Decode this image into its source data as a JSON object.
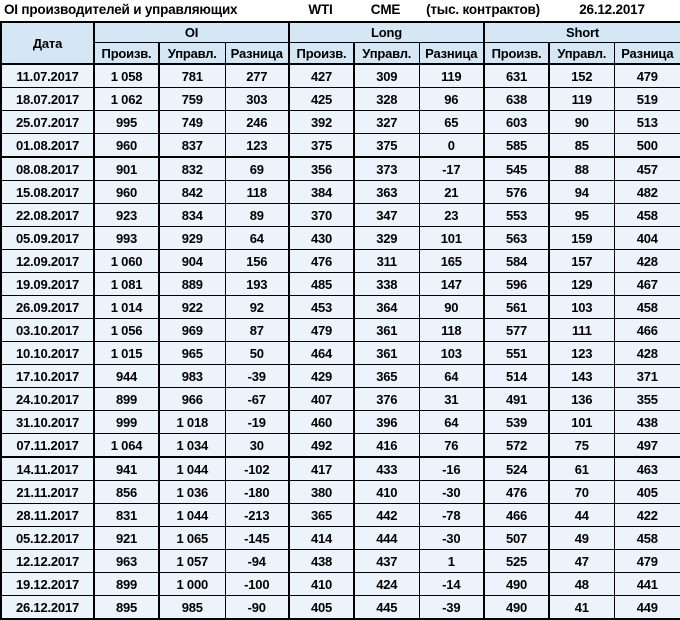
{
  "chart_data": {
    "type": "table",
    "title": "OI производителей и управляющих",
    "instrument": "WTI",
    "exchange": "CME",
    "units": "(тыс. контрактов)",
    "report_date": "26.12.2017",
    "date_header": "Дата",
    "group_headers": [
      "OI",
      "Long",
      "Short"
    ],
    "sub_headers": [
      "Произв.",
      "Управл.",
      "Разница"
    ],
    "thick_separator_after_dates": [
      "01.08.2017",
      "07.11.2017"
    ],
    "colors": {
      "header_bg": "#d5e6f4",
      "cell_bg": "#edf3fa",
      "positive": "#107c10",
      "negative": "#c43030",
      "border": "#000000"
    },
    "rows": [
      {
        "date": "11.07.2017",
        "oi": [
          "1 058",
          "781",
          "277"
        ],
        "long": [
          "427",
          "309",
          "119"
        ],
        "short": [
          "631",
          "152",
          "479"
        ]
      },
      {
        "date": "18.07.2017",
        "oi": [
          "1 062",
          "759",
          "303"
        ],
        "long": [
          "425",
          "328",
          "96"
        ],
        "short": [
          "638",
          "119",
          "519"
        ]
      },
      {
        "date": "25.07.2017",
        "oi": [
          "995",
          "749",
          "246"
        ],
        "long": [
          "392",
          "327",
          "65"
        ],
        "short": [
          "603",
          "90",
          "513"
        ]
      },
      {
        "date": "01.08.2017",
        "oi": [
          "960",
          "837",
          "123"
        ],
        "long": [
          "375",
          "375",
          "0"
        ],
        "short": [
          "585",
          "85",
          "500"
        ]
      },
      {
        "date": "08.08.2017",
        "oi": [
          "901",
          "832",
          "69"
        ],
        "long": [
          "356",
          "373",
          "-17"
        ],
        "short": [
          "545",
          "88",
          "457"
        ]
      },
      {
        "date": "15.08.2017",
        "oi": [
          "960",
          "842",
          "118"
        ],
        "long": [
          "384",
          "363",
          "21"
        ],
        "short": [
          "576",
          "94",
          "482"
        ]
      },
      {
        "date": "22.08.2017",
        "oi": [
          "923",
          "834",
          "89"
        ],
        "long": [
          "370",
          "347",
          "23"
        ],
        "short": [
          "553",
          "95",
          "458"
        ]
      },
      {
        "date": "05.09.2017",
        "oi": [
          "993",
          "929",
          "64"
        ],
        "long": [
          "430",
          "329",
          "101"
        ],
        "short": [
          "563",
          "159",
          "404"
        ]
      },
      {
        "date": "12.09.2017",
        "oi": [
          "1 060",
          "904",
          "156"
        ],
        "long": [
          "476",
          "311",
          "165"
        ],
        "short": [
          "584",
          "157",
          "428"
        ]
      },
      {
        "date": "19.09.2017",
        "oi": [
          "1 081",
          "889",
          "193"
        ],
        "long": [
          "485",
          "338",
          "147"
        ],
        "short": [
          "596",
          "129",
          "467"
        ]
      },
      {
        "date": "26.09.2017",
        "oi": [
          "1 014",
          "922",
          "92"
        ],
        "long": [
          "453",
          "364",
          "90"
        ],
        "short": [
          "561",
          "103",
          "458"
        ]
      },
      {
        "date": "03.10.2017",
        "oi": [
          "1 056",
          "969",
          "87"
        ],
        "long": [
          "479",
          "361",
          "118"
        ],
        "short": [
          "577",
          "111",
          "466"
        ]
      },
      {
        "date": "10.10.2017",
        "oi": [
          "1 015",
          "965",
          "50"
        ],
        "long": [
          "464",
          "361",
          "103"
        ],
        "short": [
          "551",
          "123",
          "428"
        ]
      },
      {
        "date": "17.10.2017",
        "oi": [
          "944",
          "983",
          "-39"
        ],
        "long": [
          "429",
          "365",
          "64"
        ],
        "short": [
          "514",
          "143",
          "371"
        ]
      },
      {
        "date": "24.10.2017",
        "oi": [
          "899",
          "966",
          "-67"
        ],
        "long": [
          "407",
          "376",
          "31"
        ],
        "short": [
          "491",
          "136",
          "355"
        ]
      },
      {
        "date": "31.10.2017",
        "oi": [
          "999",
          "1 018",
          "-19"
        ],
        "long": [
          "460",
          "396",
          "64"
        ],
        "short": [
          "539",
          "101",
          "438"
        ]
      },
      {
        "date": "07.11.2017",
        "oi": [
          "1 064",
          "1 034",
          "30"
        ],
        "long": [
          "492",
          "416",
          "76"
        ],
        "short": [
          "572",
          "75",
          "497"
        ]
      },
      {
        "date": "14.11.2017",
        "oi": [
          "941",
          "1 044",
          "-102"
        ],
        "long": [
          "417",
          "433",
          "-16"
        ],
        "short": [
          "524",
          "61",
          "463"
        ]
      },
      {
        "date": "21.11.2017",
        "oi": [
          "856",
          "1 036",
          "-180"
        ],
        "long": [
          "380",
          "410",
          "-30"
        ],
        "short": [
          "476",
          "70",
          "405"
        ]
      },
      {
        "date": "28.11.2017",
        "oi": [
          "831",
          "1 044",
          "-213"
        ],
        "long": [
          "365",
          "442",
          "-78"
        ],
        "short": [
          "466",
          "44",
          "422"
        ]
      },
      {
        "date": "05.12.2017",
        "oi": [
          "921",
          "1 065",
          "-145"
        ],
        "long": [
          "414",
          "444",
          "-30"
        ],
        "short": [
          "507",
          "49",
          "458"
        ]
      },
      {
        "date": "12.12.2017",
        "oi": [
          "963",
          "1 057",
          "-94"
        ],
        "long": [
          "438",
          "437",
          "1"
        ],
        "short": [
          "525",
          "47",
          "479"
        ]
      },
      {
        "date": "19.12.2017",
        "oi": [
          "899",
          "1 000",
          "-100"
        ],
        "long": [
          "410",
          "424",
          "-14"
        ],
        "short": [
          "490",
          "48",
          "441"
        ]
      },
      {
        "date": "26.12.2017",
        "oi": [
          "895",
          "985",
          "-90"
        ],
        "long": [
          "405",
          "445",
          "-39"
        ],
        "short": [
          "490",
          "41",
          "449"
        ]
      }
    ]
  }
}
